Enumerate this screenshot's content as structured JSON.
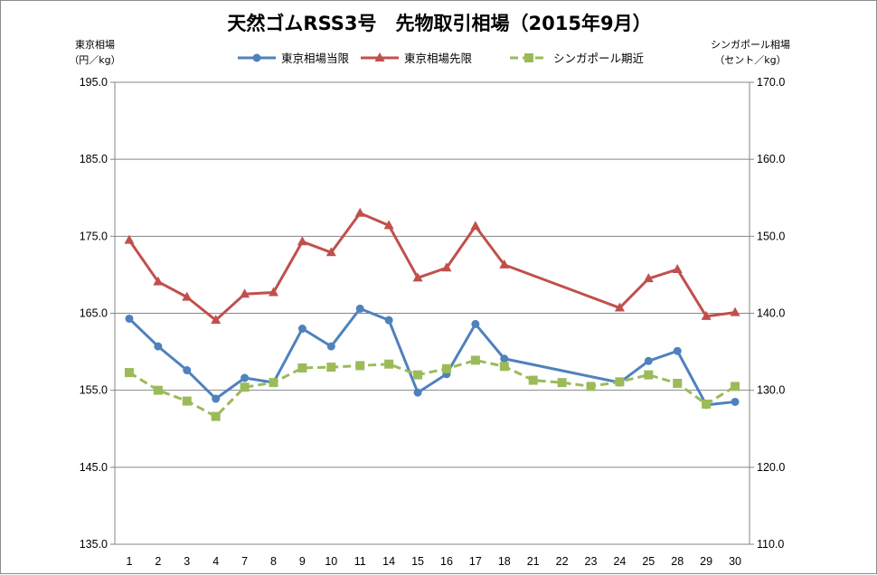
{
  "chart_data": {
    "type": "line",
    "title": "天然ゴムRSS3号　先物取引相場（2015年9月）",
    "ylabel_left": [
      "東京相場",
      "（円／kg）"
    ],
    "ylabel_right": [
      "シンガポール相場",
      "（セント／kg）"
    ],
    "categories": [
      "1",
      "2",
      "3",
      "4",
      "7",
      "8",
      "9",
      "10",
      "11",
      "14",
      "15",
      "16",
      "17",
      "18",
      "21",
      "22",
      "23",
      "24",
      "25",
      "28",
      "29",
      "30"
    ],
    "ylim_left": [
      135,
      195
    ],
    "yticks_left": [
      "135.0",
      "145.0",
      "155.0",
      "165.0",
      "175.0",
      "185.0",
      "195.0"
    ],
    "ylim_right": [
      110,
      170
    ],
    "yticks_right": [
      "110.0",
      "120.0",
      "130.0",
      "140.0",
      "150.0",
      "160.0",
      "170.0"
    ],
    "grid": "horizontal",
    "legend_position": "top",
    "series": [
      {
        "name": "東京相場当限",
        "axis": "left",
        "color": "#4F81BD",
        "marker": "circle",
        "dash": "solid",
        "values": [
          164.3,
          160.7,
          157.6,
          153.9,
          156.6,
          156.0,
          163.0,
          160.7,
          165.6,
          164.1,
          154.7,
          157.1,
          163.6,
          159.1,
          null,
          null,
          null,
          156.0,
          158.8,
          160.1,
          153.1,
          153.5
        ]
      },
      {
        "name": "東京相場先限",
        "axis": "left",
        "color": "#C0504D",
        "marker": "triangle",
        "dash": "solid",
        "values": [
          174.5,
          169.1,
          167.1,
          164.1,
          167.5,
          167.7,
          174.3,
          172.9,
          178.0,
          176.4,
          169.6,
          170.9,
          176.3,
          171.3,
          null,
          null,
          null,
          165.7,
          169.5,
          170.7,
          164.6,
          165.1
        ]
      },
      {
        "name": "シンガポール期近",
        "axis": "right",
        "color": "#9BBB59",
        "marker": "square",
        "dash": "dashed",
        "values": [
          132.3,
          130.0,
          128.6,
          126.6,
          130.4,
          131.0,
          132.9,
          133.0,
          133.2,
          133.4,
          132.0,
          132.8,
          133.9,
          133.1,
          131.3,
          131.0,
          130.5,
          131.1,
          132.0,
          130.9,
          128.2,
          130.5
        ]
      }
    ]
  }
}
